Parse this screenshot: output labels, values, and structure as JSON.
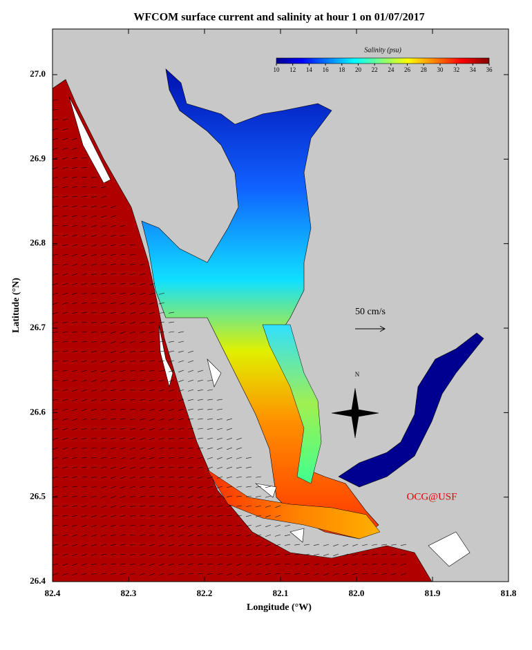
{
  "chart_data": {
    "type": "map",
    "title": "WFCOM surface current and salinity at hour 1 on 01/07/2017",
    "x_label": "Longitude (°W)",
    "y_label": "Latitude (°N)",
    "xlim": [
      82.4,
      81.8
    ],
    "ylim": [
      26.4,
      27.054
    ],
    "xticks": [
      82.4,
      82.3,
      82.2,
      82.1,
      {
        "value": 82,
        "label": "82.0"
      },
      81.9,
      81.8
    ],
    "yticks": [
      26.4,
      26.5,
      26.6,
      26.7,
      26.8,
      26.9,
      {
        "value": 27,
        "label": "27.0"
      }
    ],
    "colorbar": {
      "label": "Salinity (psu)",
      "lim": [
        10,
        36
      ],
      "ticks": [
        10,
        12,
        14,
        16,
        18,
        20,
        22,
        24,
        26,
        28,
        30,
        32,
        34,
        36
      ]
    },
    "scale_label": "50 cm/s",
    "compass_label": "N",
    "credit": "OCG@USF"
  }
}
